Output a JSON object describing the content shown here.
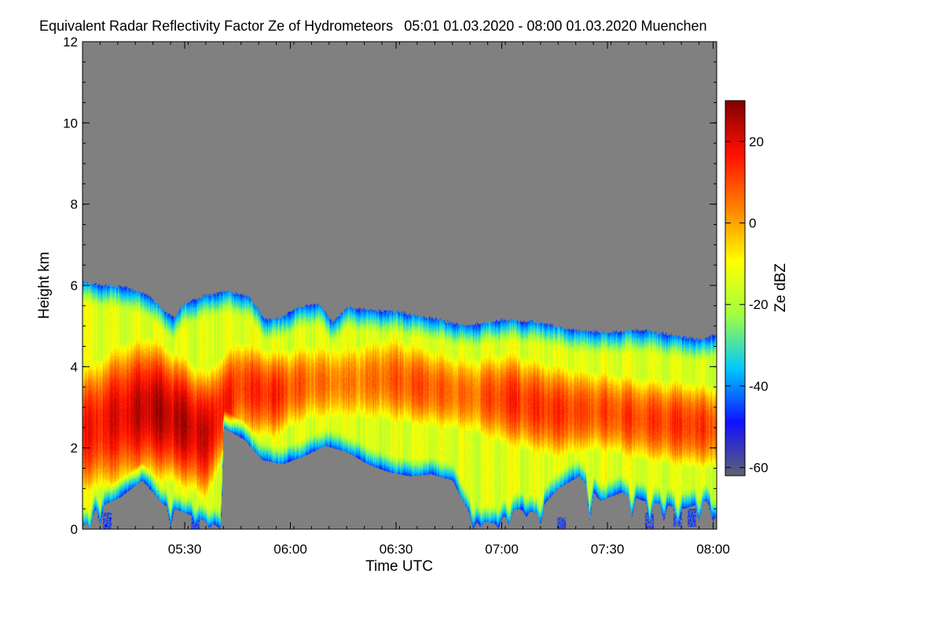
{
  "chart_data": {
    "type": "heatmap",
    "title": "Equivalent Radar Reflectivity Factor Ze of Hydrometeors",
    "time_range": "05:01 01.03.2020 - 08:00 01.03.2020",
    "location": "Muenchen",
    "xlabel": "Time UTC",
    "ylabel": "Height km",
    "x_range_minutes": [
      301,
      481
    ],
    "x_ticks": [
      {
        "minute": 330,
        "label": "05:30"
      },
      {
        "minute": 360,
        "label": "06:00"
      },
      {
        "minute": 390,
        "label": "06:30"
      },
      {
        "minute": 420,
        "label": "07:00"
      },
      {
        "minute": 450,
        "label": "07:30"
      },
      {
        "minute": 480,
        "label": "08:00"
      }
    ],
    "ylim": [
      0,
      12
    ],
    "y_ticks": [
      {
        "value": 0,
        "label": "0"
      },
      {
        "value": 2,
        "label": "2"
      },
      {
        "value": 4,
        "label": "4"
      },
      {
        "value": 6,
        "label": "6"
      },
      {
        "value": 8,
        "label": "8"
      },
      {
        "value": 10,
        "label": "10"
      },
      {
        "value": 12,
        "label": "12"
      }
    ],
    "colorbar": {
      "label": "Ze dBZ",
      "range": [
        -62,
        30
      ],
      "ticks": [
        {
          "value": 20,
          "label": "20"
        },
        {
          "value": 0,
          "label": "0"
        },
        {
          "value": -20,
          "label": "-20"
        },
        {
          "value": -40,
          "label": "-40"
        },
        {
          "value": -60,
          "label": "-60"
        }
      ],
      "colormap": [
        "#606070",
        "#1010ff",
        "#00c8ff",
        "#a0ff40",
        "#ffff00",
        "#ff8000",
        "#ff1000",
        "#800000"
      ]
    },
    "no_signal_color": "#808080",
    "echo_top_km": [
      {
        "minute": 301,
        "value": 6.1
      },
      {
        "minute": 307,
        "value": 6.0
      },
      {
        "minute": 313,
        "value": 5.95
      },
      {
        "minute": 319,
        "value": 5.8
      },
      {
        "minute": 324,
        "value": 5.4
      },
      {
        "minute": 327,
        "value": 5.2
      },
      {
        "minute": 330,
        "value": 5.55
      },
      {
        "minute": 336,
        "value": 5.75
      },
      {
        "minute": 342,
        "value": 5.85
      },
      {
        "minute": 348,
        "value": 5.75
      },
      {
        "minute": 353,
        "value": 5.15
      },
      {
        "minute": 357,
        "value": 5.2
      },
      {
        "minute": 362,
        "value": 5.45
      },
      {
        "minute": 368,
        "value": 5.55
      },
      {
        "minute": 372,
        "value": 5.1
      },
      {
        "minute": 376,
        "value": 5.45
      },
      {
        "minute": 382,
        "value": 5.4
      },
      {
        "minute": 390,
        "value": 5.35
      },
      {
        "minute": 400,
        "value": 5.2
      },
      {
        "minute": 410,
        "value": 5.0
      },
      {
        "minute": 420,
        "value": 5.15
      },
      {
        "minute": 430,
        "value": 5.1
      },
      {
        "minute": 440,
        "value": 4.9
      },
      {
        "minute": 450,
        "value": 4.85
      },
      {
        "minute": 460,
        "value": 4.9
      },
      {
        "minute": 470,
        "value": 4.75
      },
      {
        "minute": 476,
        "value": 4.65
      },
      {
        "minute": 481,
        "value": 4.8
      }
    ],
    "cloud_base_km": [
      {
        "minute": 301,
        "value": 0.05
      },
      {
        "minute": 305,
        "value": 0.5
      },
      {
        "minute": 312,
        "value": 0.8
      },
      {
        "minute": 318,
        "value": 1.2
      },
      {
        "minute": 324,
        "value": 0.6
      },
      {
        "minute": 330,
        "value": 0.4
      },
      {
        "minute": 336,
        "value": 0.2
      },
      {
        "minute": 340,
        "value": 0.05
      },
      {
        "minute": 341,
        "value": 2.5
      },
      {
        "minute": 347,
        "value": 2.2
      },
      {
        "minute": 352,
        "value": 1.7
      },
      {
        "minute": 358,
        "value": 1.6
      },
      {
        "minute": 364,
        "value": 1.8
      },
      {
        "minute": 370,
        "value": 2.05
      },
      {
        "minute": 376,
        "value": 1.9
      },
      {
        "minute": 382,
        "value": 1.6
      },
      {
        "minute": 388,
        "value": 1.4
      },
      {
        "minute": 394,
        "value": 1.3
      },
      {
        "minute": 400,
        "value": 1.35
      },
      {
        "minute": 406,
        "value": 1.2
      },
      {
        "minute": 412,
        "value": 0.2
      },
      {
        "minute": 418,
        "value": 0.15
      },
      {
        "minute": 424,
        "value": 0.5
      },
      {
        "minute": 430,
        "value": 0.4
      },
      {
        "minute": 436,
        "value": 1.0
      },
      {
        "minute": 442,
        "value": 1.3
      },
      {
        "minute": 448,
        "value": 0.7
      },
      {
        "minute": 454,
        "value": 0.9
      },
      {
        "minute": 460,
        "value": 0.7
      },
      {
        "minute": 466,
        "value": 0.6
      },
      {
        "minute": 472,
        "value": 0.5
      },
      {
        "minute": 478,
        "value": 0.7
      },
      {
        "minute": 481,
        "value": 0.3
      }
    ],
    "core_band": [
      {
        "minute": 301,
        "center_km": 2.4,
        "halfwidth_km": 1.4,
        "peak_dbz": 14
      },
      {
        "minute": 312,
        "center_km": 2.8,
        "halfwidth_km": 1.5,
        "peak_dbz": 20
      },
      {
        "minute": 320,
        "center_km": 3.0,
        "halfwidth_km": 1.4,
        "peak_dbz": 24
      },
      {
        "minute": 328,
        "center_km": 2.7,
        "halfwidth_km": 1.3,
        "peak_dbz": 24
      },
      {
        "minute": 336,
        "center_km": 2.3,
        "halfwidth_km": 1.3,
        "peak_dbz": 22
      },
      {
        "minute": 345,
        "center_km": 3.5,
        "halfwidth_km": 1.1,
        "peak_dbz": 12
      },
      {
        "minute": 355,
        "center_km": 3.3,
        "halfwidth_km": 1.0,
        "peak_dbz": 14
      },
      {
        "minute": 365,
        "center_km": 3.6,
        "halfwidth_km": 1.0,
        "peak_dbz": 6
      },
      {
        "minute": 375,
        "center_km": 3.6,
        "halfwidth_km": 1.0,
        "peak_dbz": 3
      },
      {
        "minute": 388,
        "center_km": 3.7,
        "halfwidth_km": 1.1,
        "peak_dbz": 8
      },
      {
        "minute": 398,
        "center_km": 3.5,
        "halfwidth_km": 1.0,
        "peak_dbz": 9
      },
      {
        "minute": 410,
        "center_km": 3.3,
        "halfwidth_km": 1.0,
        "peak_dbz": 5
      },
      {
        "minute": 422,
        "center_km": 3.2,
        "halfwidth_km": 1.1,
        "peak_dbz": 13
      },
      {
        "minute": 435,
        "center_km": 2.9,
        "halfwidth_km": 1.1,
        "peak_dbz": 12
      },
      {
        "minute": 448,
        "center_km": 2.9,
        "halfwidth_km": 1.0,
        "peak_dbz": 9
      },
      {
        "minute": 460,
        "center_km": 2.7,
        "halfwidth_km": 1.0,
        "peak_dbz": 11
      },
      {
        "minute": 470,
        "center_km": 2.6,
        "halfwidth_km": 1.0,
        "peak_dbz": 13
      },
      {
        "minute": 481,
        "center_km": 2.5,
        "halfwidth_km": 1.0,
        "peak_dbz": 12
      }
    ],
    "fall_streaks": [
      {
        "minute": 303,
        "bottom_km": 0.0
      },
      {
        "minute": 306,
        "bottom_km": 0.1
      },
      {
        "minute": 326,
        "bottom_km": 0.05
      },
      {
        "minute": 333,
        "bottom_km": 0.0
      },
      {
        "minute": 337,
        "bottom_km": 0.0
      },
      {
        "minute": 340,
        "bottom_km": 0.0
      },
      {
        "minute": 412,
        "bottom_km": 0.0
      },
      {
        "minute": 414,
        "bottom_km": 0.05
      },
      {
        "minute": 419,
        "bottom_km": 0.0
      },
      {
        "minute": 422,
        "bottom_km": 0.1
      },
      {
        "minute": 427,
        "bottom_km": 0.3
      },
      {
        "minute": 431,
        "bottom_km": 0.1
      },
      {
        "minute": 445,
        "bottom_km": 0.2
      },
      {
        "minute": 457,
        "bottom_km": 0.3
      },
      {
        "minute": 462,
        "bottom_km": 0.15
      },
      {
        "minute": 466,
        "bottom_km": 0.2
      },
      {
        "minute": 470,
        "bottom_km": 0.1
      },
      {
        "minute": 476,
        "bottom_km": 0.2
      },
      {
        "minute": 480,
        "bottom_km": 0.2
      }
    ],
    "weak_echo_patches": [
      {
        "minute": 308,
        "bottom_km": 0.0,
        "top_km": 0.4
      },
      {
        "minute": 333,
        "bottom_km": 0.0,
        "top_km": 0.3
      },
      {
        "minute": 437,
        "bottom_km": 0.0,
        "top_km": 0.3
      },
      {
        "minute": 462,
        "bottom_km": 0.0,
        "top_km": 0.4
      },
      {
        "minute": 470,
        "bottom_km": 0.05,
        "top_km": 0.5
      },
      {
        "minute": 474,
        "bottom_km": 0.05,
        "top_km": 0.5
      }
    ]
  }
}
